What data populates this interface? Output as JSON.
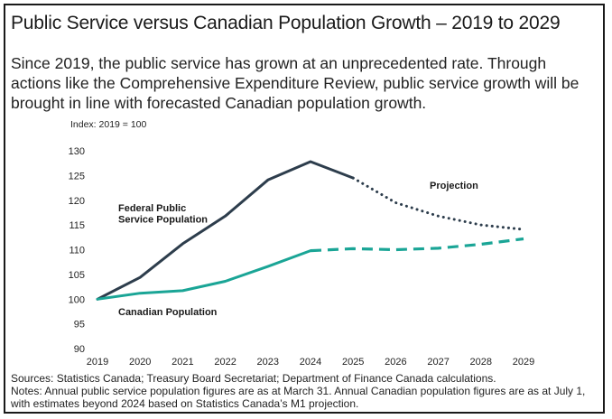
{
  "title": "Public Service versus Canadian Population Growth – 2019 to 2029",
  "subtitle": "Since 2019, the public service has grown at an unprecedented rate. Through actions like the Comprehensive Expenditure Review, public service growth will be brought in line with forecasted Canadian population growth.",
  "sources": "Sources: Statistics Canada; Treasury Board Secretariat; Department of Finance Canada calculations.",
  "notes": "Notes: Annual public service population figures are as at March 31. Annual Canadian population figures are as at July 1, with estimates beyond 2024 based on Statistics Canada’s M1 projection.",
  "colors": {
    "federal": "#2d3d4c",
    "canadian": "#1aa596"
  },
  "chart_data": {
    "type": "line",
    "ylabel": "Index: 2019 = 100",
    "xlabel": "",
    "x": [
      2019,
      2020,
      2021,
      2022,
      2023,
      2024,
      2025,
      2026,
      2027,
      2028,
      2029
    ],
    "ylim": [
      90,
      130
    ],
    "yticks": [
      90,
      95,
      100,
      105,
      110,
      115,
      120,
      125,
      130
    ],
    "grid": false,
    "annotation": "Projection",
    "series": [
      {
        "name": "Federal Public Service Population",
        "label_lines": [
          "Federal Public",
          "Service Population"
        ],
        "values": [
          100,
          104.4,
          111.2,
          116.8,
          124.1,
          127.8,
          124.5,
          119.5,
          116.8,
          115.0,
          114.1
        ],
        "projection_from": 2025,
        "style_actual": "solid",
        "style_projection": "dotted"
      },
      {
        "name": "Canadian Population",
        "label_lines": [
          "Canadian Population"
        ],
        "values": [
          100,
          101.2,
          101.7,
          103.6,
          106.6,
          109.8,
          110.2,
          110.0,
          110.3,
          111.1,
          112.2
        ],
        "projection_from": 2024,
        "style_actual": "solid",
        "style_projection": "dashed"
      }
    ]
  }
}
